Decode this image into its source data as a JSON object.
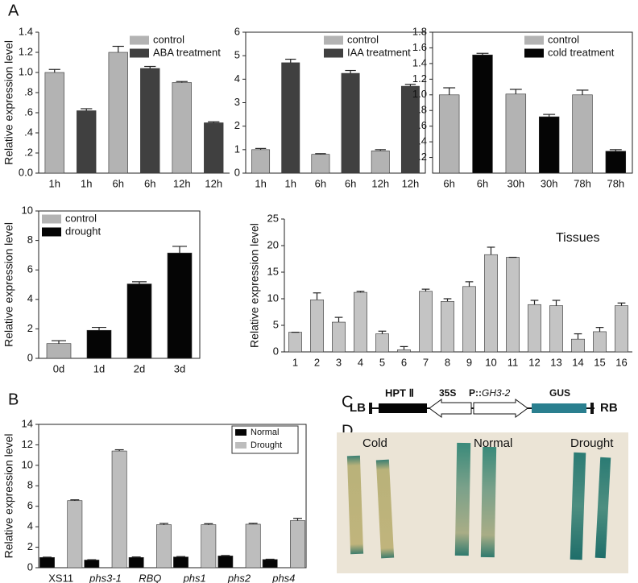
{
  "panel_labels": [
    "A",
    "B",
    "C",
    "D"
  ],
  "chart_data": [
    {
      "type": "bar",
      "ylabel": "Relative expression level",
      "categories": [
        "1h",
        "1h",
        "6h",
        "6h",
        "12h",
        "12h"
      ],
      "series": [
        {
          "name": "control",
          "color": "#b3b3b3",
          "values": [
            1.0,
            null,
            1.2,
            null,
            0.9,
            null
          ],
          "errors": [
            0.03,
            null,
            0.06,
            null,
            0.01,
            null
          ]
        },
        {
          "name": "ABA treatment",
          "color": "#404040",
          "values": [
            null,
            0.62,
            null,
            1.04,
            null,
            0.5
          ],
          "errors": [
            null,
            0.02,
            null,
            0.02,
            null,
            0.01
          ]
        }
      ],
      "ylim": [
        0,
        1.4
      ],
      "yticks": [
        {
          "value": 0,
          "label": "0.0"
        },
        {
          "value": 0.2,
          "label": ".2"
        },
        {
          "value": 0.4,
          "label": ".4"
        },
        {
          "value": 0.6,
          "label": ".6"
        },
        {
          "value": 0.8,
          "label": ".8"
        },
        {
          "value": 1.0,
          "label": "1.0"
        },
        {
          "value": 1.2,
          "label": "1.2"
        },
        {
          "value": 1.4,
          "label": "1.4"
        }
      ],
      "legend": "upper right"
    },
    {
      "type": "bar",
      "categories": [
        "1h",
        "1h",
        "6h",
        "6h",
        "12h",
        "12h"
      ],
      "series": [
        {
          "name": "control",
          "color": "#b3b3b3",
          "values": [
            1.0,
            null,
            0.8,
            null,
            0.95,
            null
          ],
          "errors": [
            0.05,
            null,
            0.03,
            null,
            0.05,
            null
          ]
        },
        {
          "name": "IAA treatment",
          "color": "#404040",
          "values": [
            null,
            4.7,
            null,
            4.25,
            null,
            3.7
          ],
          "errors": [
            null,
            0.15,
            null,
            0.12,
            null,
            0.08
          ]
        }
      ],
      "ylim": [
        0,
        6
      ],
      "yticks": [
        0,
        1,
        2,
        3,
        4,
        5,
        6
      ],
      "legend": "upper right"
    },
    {
      "type": "bar",
      "categories": [
        "6h",
        "6h",
        "30h",
        "30h",
        "78h",
        "78h"
      ],
      "series": [
        {
          "name": "control",
          "color": "#b3b3b3",
          "values": [
            1.0,
            null,
            1.01,
            null,
            1.0,
            null
          ],
          "errors": [
            0.09,
            null,
            0.06,
            null,
            0.06,
            null
          ]
        },
        {
          "name": "cold treatment",
          "color": "#050505",
          "values": [
            null,
            1.51,
            null,
            0.72,
            null,
            0.28
          ],
          "errors": [
            null,
            0.02,
            null,
            0.03,
            null,
            0.02
          ]
        }
      ],
      "ylim": [
        0,
        1.8
      ],
      "yticks": [
        {
          "value": 0.2,
          "label": ".2"
        },
        {
          "value": 0.4,
          "label": ".4"
        },
        {
          "value": 0.6,
          "label": ".6"
        },
        {
          "value": 0.8,
          "label": ".8"
        },
        {
          "value": 1.0,
          "label": "1.0"
        },
        {
          "value": 1.2,
          "label": "1.2"
        },
        {
          "value": 1.4,
          "label": "1.4"
        },
        {
          "value": 1.6,
          "label": "1.6"
        },
        {
          "value": 1.8,
          "label": "1.8"
        }
      ],
      "legend": "upper right"
    },
    {
      "type": "bar",
      "ylabel": "Relative expression level",
      "categories": [
        "0d",
        "1d",
        "2d",
        "3d"
      ],
      "series": [
        {
          "name": "control",
          "color": "#b3b3b3",
          "values": [
            1.0,
            null,
            null,
            null
          ],
          "errors": [
            0.2,
            null,
            null,
            null
          ]
        },
        {
          "name": "drought",
          "color": "#050505",
          "values": [
            null,
            1.9,
            5.05,
            7.15
          ],
          "errors": [
            null,
            0.2,
            0.15,
            0.45
          ]
        }
      ],
      "ylim": [
        0,
        10
      ],
      "yticks": [
        0,
        2,
        4,
        6,
        8,
        10
      ],
      "legend": "upper left"
    },
    {
      "type": "bar",
      "ylabel": "Relative expression level",
      "annotation": "Tissues",
      "categories": [
        "1",
        "2",
        "3",
        "4",
        "5",
        "6",
        "7",
        "8",
        "9",
        "10",
        "11",
        "12",
        "13",
        "14",
        "15",
        "16"
      ],
      "series": [
        {
          "color": "#c4c4c4",
          "values": [
            3.7,
            9.8,
            5.6,
            11.2,
            3.4,
            0.4,
            11.4,
            9.5,
            12.3,
            18.3,
            17.8,
            8.9,
            8.7,
            2.4,
            3.8,
            8.7
          ],
          "errors": [
            0,
            1.3,
            0.9,
            0.2,
            0.5,
            0.6,
            0.4,
            0.5,
            0.9,
            1.4,
            0,
            0.8,
            1.0,
            1.0,
            0.8,
            0.5
          ]
        }
      ],
      "ylim": [
        0,
        25
      ],
      "yticks": [
        0,
        5,
        10,
        15,
        20,
        25
      ]
    },
    {
      "type": "bar",
      "ylabel": "Relative expression level",
      "categories": [
        "XS11",
        "phs3-1",
        "RBQ",
        "phs1",
        "phs2",
        "phs4"
      ],
      "series": [
        {
          "name": "Normal",
          "color": "#050505",
          "values": [
            1.0,
            0.75,
            1.0,
            1.05,
            1.15,
            0.8
          ],
          "errors": [
            0.03,
            0.03,
            0.05,
            0.04,
            0.04,
            0.03
          ]
        },
        {
          "name": "Drought",
          "color": "#bdbdbd",
          "values": [
            6.55,
            11.4,
            4.2,
            4.2,
            4.25,
            4.6
          ],
          "errors": [
            0.08,
            0.12,
            0.12,
            0.1,
            0.08,
            0.22
          ]
        }
      ],
      "ylim": [
        0,
        14
      ],
      "yticks": [
        0,
        2,
        4,
        6,
        8,
        10,
        12,
        14
      ],
      "legend": "upper right"
    }
  ],
  "construct": {
    "left": "LB",
    "marker": "HPT Ⅱ",
    "promoter": "35S",
    "gene_prefix": "P::",
    "gene": "GH3-2",
    "reporter": "GUS",
    "right": "RB"
  },
  "photo": {
    "labels": [
      "Cold",
      "Normal",
      "Drought"
    ]
  }
}
